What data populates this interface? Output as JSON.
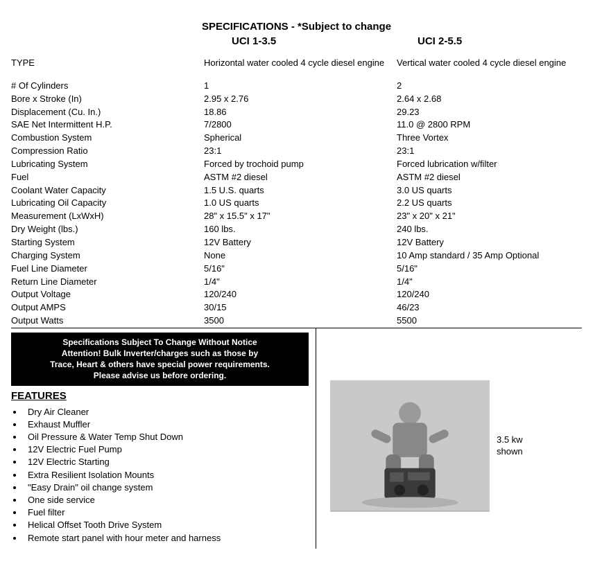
{
  "title": "SPECIFICATIONS - *Subject to change",
  "models": {
    "m1": "UCI 1-3.5",
    "m2": "UCI 2-5.5"
  },
  "type_label": "TYPE",
  "type_c1": "Horizontal water cooled 4 cycle diesel engine",
  "type_c2": "Vertical water cooled 4 cycle diesel engine",
  "specs": [
    {
      "label": "# Of Cylinders",
      "c1": "1",
      "c2": "2"
    },
    {
      "label": "Bore x Stroke (In)",
      "c1": "2.95 x 2.76",
      "c2": "2.64 x 2.68"
    },
    {
      "label": "Displacement (Cu. In.)",
      "c1": "18.86",
      "c2": "29.23"
    },
    {
      "label": "SAE Net Intermittent H.P.",
      "c1": "7/2800",
      "c2": "11.0 @ 2800 RPM"
    },
    {
      "label": "Combustion System",
      "c1": "Spherical",
      "c2": "Three Vortex"
    },
    {
      "label": "Compression Ratio",
      "c1": "23:1",
      "c2": "23:1"
    },
    {
      "label": "Lubricating System",
      "c1": "Forced by trochoid pump",
      "c2": "Forced lubrication w/filter"
    },
    {
      "label": "Fuel",
      "c1": "ASTM #2 diesel",
      "c2": "ASTM #2 diesel"
    },
    {
      "label": "Coolant Water Capacity",
      "c1": "1.5 U.S. quarts",
      "c2": "3.0 US quarts"
    },
    {
      "label": "Lubricating Oil Capacity",
      "c1": "1.0 US quarts",
      "c2": "2.2 US quarts"
    },
    {
      "label": "Measurement (LxWxH)",
      "c1": "28\" x 15.5\" x 17\"",
      "c2": "23\" x 20\" x 21\""
    },
    {
      "label": "Dry Weight (lbs.)",
      "c1": "160 lbs.",
      "c2": "240 lbs."
    },
    {
      "label": "Starting System",
      "c1": "12V Battery",
      "c2": "12V Battery"
    },
    {
      "label": "Charging System",
      "c1": "None",
      "c2": "10 Amp standard / 35 Amp Optional"
    },
    {
      "label": "Fuel Line Diameter",
      "c1": "5/16\"",
      "c2": "5/16\""
    },
    {
      "label": "Return Line Diameter",
      "c1": "1/4\"",
      "c2": "1/4\""
    },
    {
      "label": "Output Voltage",
      "c1": "120/240",
      "c2": "120/240"
    },
    {
      "label": "Output AMPS",
      "c1": "30/15",
      "c2": "46/23"
    },
    {
      "label": "Output Watts",
      "c1": "3500",
      "c2": "5500"
    }
  ],
  "notice_l1": "Specifications Subject To Change Without Notice",
  "notice_l2": "Attention!  Bulk Inverter/charges such as those by",
  "notice_l3": "Trace, Heart & others have special power requirements.",
  "notice_l4": "Please advise us before ordering.",
  "features_heading": "FEATURES",
  "features": [
    "Dry Air Cleaner",
    "Exhaust Muffler",
    "Oil Pressure & Water Temp Shut Down",
    "12V Electric Fuel Pump",
    "12V Electric Starting",
    "Extra Resilient Isolation Mounts",
    "\"Easy Drain\" oil change system",
    "One side service",
    "Fuel filter",
    "Helical Offset Tooth Drive System",
    "Remote start panel with hour meter and harness"
  ],
  "caption_l1": "3.5 kw",
  "caption_l2": "shown"
}
